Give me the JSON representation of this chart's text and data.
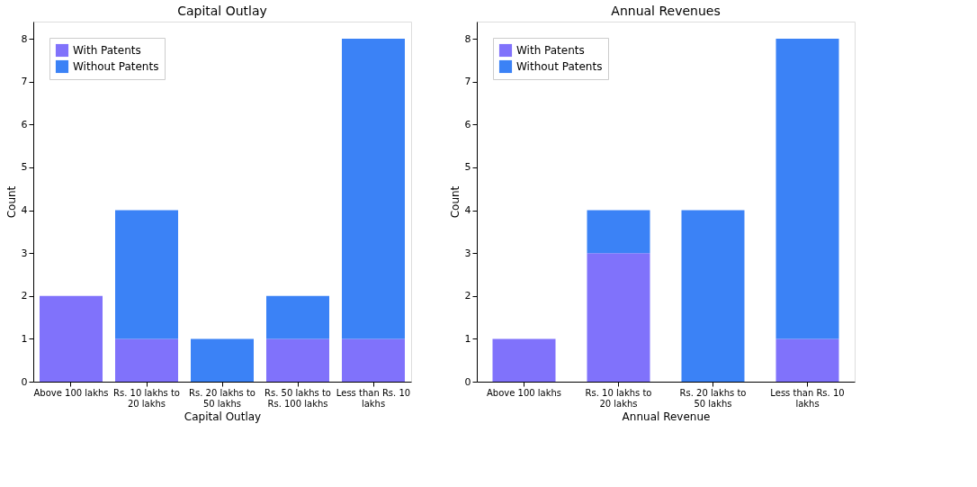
{
  "chart_data": [
    {
      "type": "bar",
      "title": "Capital Outlay",
      "xlabel": "Capital Outlay",
      "ylabel": "Count",
      "categories": [
        "Above 100 lakhs",
        "Rs. 10 lakhs to 20 lakhs",
        "Rs. 20 lakhs to 50 lakhs",
        "Rs. 50 lakhs to Rs. 100 lakhs",
        "Less than Rs. 10 lakhs"
      ],
      "stacked": true,
      "series": [
        {
          "name": "With Patents",
          "color": "#8072fb",
          "values": [
            2,
            1,
            0,
            1,
            1
          ]
        },
        {
          "name": "Without Patents",
          "color": "#3b82f6",
          "values": [
            0,
            3,
            1,
            1,
            7
          ]
        }
      ],
      "ylim": [
        0,
        8.4
      ],
      "yticks": [
        0,
        1,
        2,
        3,
        4,
        5,
        6,
        7,
        8
      ],
      "grid": false,
      "legend": "top left"
    },
    {
      "type": "bar",
      "title": "Annual Revenues",
      "xlabel": "Annual Revenue",
      "ylabel": "Count",
      "categories": [
        "Above 100 lakhs",
        "Rs. 10 lakhs to 20 lakhs",
        "Rs. 20 lakhs to 50 lakhs",
        "Less than Rs. 10 lakhs"
      ],
      "stacked": true,
      "series": [
        {
          "name": "With Patents",
          "color": "#8072fb",
          "values": [
            1,
            3,
            0,
            1
          ]
        },
        {
          "name": "Without Patents",
          "color": "#3b82f6",
          "values": [
            0,
            1,
            4,
            7
          ]
        }
      ],
      "ylim": [
        0,
        8.4
      ],
      "yticks": [
        0,
        1,
        2,
        3,
        4,
        5,
        6,
        7,
        8
      ],
      "grid": false,
      "legend": "top left"
    }
  ]
}
